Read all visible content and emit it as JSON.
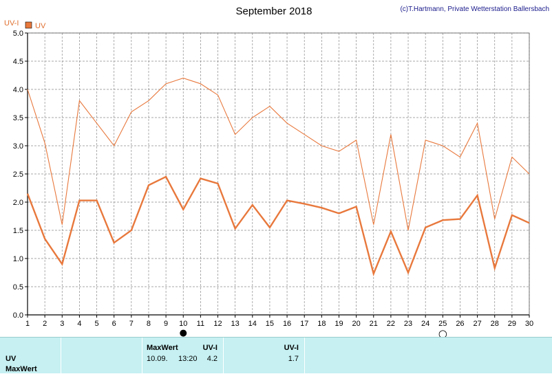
{
  "chart_data": {
    "type": "line",
    "title": "September 2018",
    "credit": "(c)T.Hartmann, Private Wetterstation Ballersbach",
    "ylabel": "UV-I",
    "ylim": [
      0,
      5
    ],
    "yticks": [
      "0.0",
      "0.5",
      "1.0",
      "1.5",
      "2.0",
      "2.5",
      "3.0",
      "3.5",
      "4.0",
      "4.5",
      "5.0"
    ],
    "x": [
      1,
      2,
      3,
      4,
      5,
      6,
      7,
      8,
      9,
      10,
      11,
      12,
      13,
      14,
      15,
      16,
      17,
      18,
      19,
      20,
      21,
      22,
      23,
      24,
      25,
      26,
      27,
      28,
      29,
      30
    ],
    "grid": true,
    "legend": "top-left",
    "series": [
      {
        "name": "UV",
        "color": "#e8783c",
        "values": [
          2.15,
          1.35,
          0.9,
          2.03,
          2.03,
          1.28,
          1.5,
          2.3,
          2.45,
          1.87,
          2.42,
          2.33,
          1.53,
          1.95,
          1.55,
          2.03,
          1.97,
          1.9,
          1.8,
          1.92,
          0.73,
          1.48,
          0.75,
          1.55,
          1.68,
          1.7,
          2.12,
          0.83,
          1.77,
          1.63
        ]
      },
      {
        "name": "MaxWert",
        "color": "#e8783c",
        "values": [
          4.0,
          3.05,
          1.6,
          3.8,
          3.4,
          3.0,
          3.6,
          3.8,
          4.1,
          4.2,
          4.1,
          3.9,
          3.2,
          3.5,
          3.7,
          3.4,
          3.2,
          3.0,
          2.9,
          3.1,
          1.6,
          3.2,
          1.5,
          3.1,
          3.0,
          2.8,
          3.4,
          1.7,
          2.8,
          2.5
        ]
      }
    ],
    "markers": {
      "full_moon_day": 10,
      "new_moon_day": 25,
      "full_moon_symbol": "●",
      "new_moon_symbol": "○"
    }
  },
  "footer": {
    "row_labels": [
      "UV",
      "MaxWert"
    ],
    "col2_head": "MaxWert",
    "col2_unit": "UV-I",
    "col2_date": "10.09.",
    "col2_time": "13:20",
    "col2_value": "4.2",
    "col3_unit": "UV-I",
    "col3_value": "1.7"
  }
}
